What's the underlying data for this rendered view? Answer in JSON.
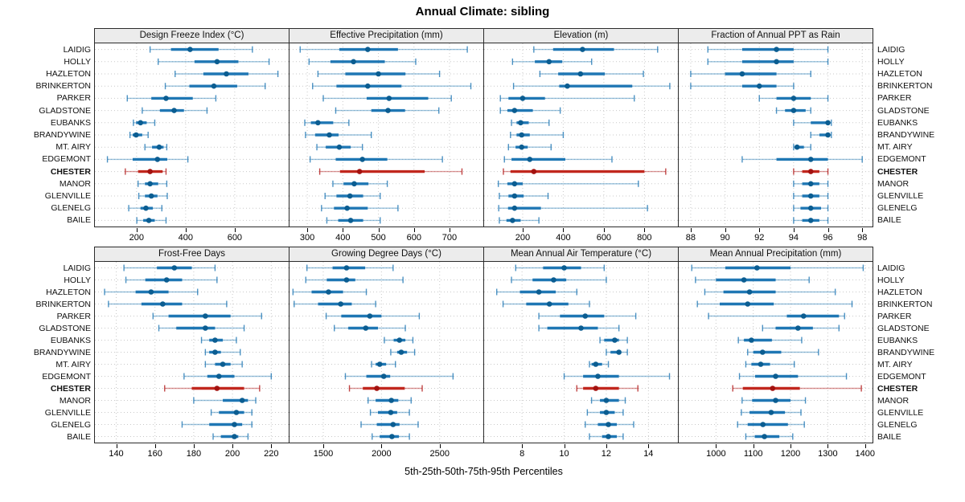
{
  "title": "Annual Climate: sibling",
  "xlabel": "5th-25th-50th-75th-95th Percentiles",
  "stations": [
    "LAIDIG",
    "HOLLY",
    "HAZLETON",
    "BRINKERTON",
    "PARKER",
    "GLADSTONE",
    "EUBANKS",
    "BRANDYWINE",
    "MT. AIRY",
    "EDGEMONT",
    "CHESTER",
    "MANOR",
    "GLENVILLE",
    "GLENELG",
    "BAILE"
  ],
  "highlight_station": "CHESTER",
  "colors": {
    "blue_bar": "#1f77b4",
    "blue_dot": "#0b5d91",
    "blue_whisker": "rgba(31,119,180,0.45)",
    "blue_cap": "rgba(31,119,180,0.8)",
    "red_bar": "#c1271e",
    "red_dot": "#a31210",
    "red_whisker": "rgba(178,24,24,0.45)",
    "red_cap": "rgba(178,24,24,0.8)",
    "grid": "#c9c9c9",
    "strip_bg": "#ececec",
    "border": "#2b2b2b"
  },
  "chart_data": [
    {
      "type": "scatter",
      "title": "Design Freeze Index (°C)",
      "percentiles": [
        "5th",
        "25th",
        "50th",
        "75th",
        "95th"
      ],
      "ticks": [
        200,
        400,
        600
      ],
      "range": [
        30,
        820
      ],
      "legend_position": "none",
      "grid": true,
      "values": [
        [
          255,
          340,
          418,
          534,
          672
        ],
        [
          288,
          436,
          528,
          615,
          740
        ],
        [
          357,
          472,
          566,
          656,
          776
        ],
        [
          317,
          415,
          515,
          610,
          724
        ],
        [
          162,
          260,
          320,
          429,
          523
        ],
        [
          223,
          295,
          353,
          393,
          487
        ],
        [
          187,
          198,
          216,
          241,
          274
        ],
        [
          173,
          184,
          198,
          223,
          247
        ],
        [
          234,
          263,
          292,
          310,
          323
        ],
        [
          81,
          184,
          285,
          325,
          409
        ],
        [
          154,
          206,
          255,
          306,
          320
        ],
        [
          206,
          234,
          255,
          288,
          323
        ],
        [
          209,
          234,
          260,
          285,
          325
        ],
        [
          168,
          216,
          238,
          266,
          303
        ],
        [
          201,
          227,
          250,
          274,
          320
        ]
      ]
    },
    {
      "type": "scatter",
      "title": "Effective Precipitation (mm)",
      "percentiles": [
        "5th",
        "25th",
        "50th",
        "75th",
        "95th"
      ],
      "ticks": [
        300,
        400,
        500,
        600,
        700
      ],
      "range": [
        250,
        795
      ],
      "legend_position": "none",
      "grid": true,
      "values": [
        [
          280,
          390,
          470,
          555,
          750
        ],
        [
          305,
          365,
          430,
          518,
          605
        ],
        [
          330,
          407,
          500,
          576,
          672
        ],
        [
          315,
          382,
          470,
          565,
          760
        ],
        [
          345,
          467,
          530,
          640,
          705
        ],
        [
          380,
          480,
          527,
          575,
          670
        ],
        [
          293,
          310,
          330,
          373,
          417
        ],
        [
          295,
          322,
          362,
          388,
          480
        ],
        [
          327,
          352,
          390,
          422,
          455
        ],
        [
          308,
          380,
          455,
          525,
          680
        ],
        [
          335,
          392,
          447,
          630,
          735
        ],
        [
          372,
          402,
          432,
          472,
          525
        ],
        [
          350,
          382,
          420,
          457,
          505
        ],
        [
          340,
          375,
          412,
          470,
          555
        ],
        [
          355,
          387,
          422,
          457,
          505
        ]
      ]
    },
    {
      "type": "scatter",
      "title": "Elevation (m)",
      "percentiles": [
        "5th",
        "25th",
        "50th",
        "75th",
        "95th"
      ],
      "ticks": [
        200,
        400,
        600,
        800
      ],
      "range": [
        10,
        965
      ],
      "legend_position": "none",
      "grid": true,
      "values": [
        [
          255,
          350,
          495,
          650,
          865
        ],
        [
          150,
          260,
          330,
          395,
          540
        ],
        [
          285,
          375,
          485,
          605,
          795
        ],
        [
          155,
          380,
          420,
          740,
          925
        ],
        [
          90,
          130,
          200,
          310,
          750
        ],
        [
          90,
          125,
          160,
          250,
          385
        ],
        [
          145,
          170,
          190,
          230,
          330
        ],
        [
          140,
          170,
          195,
          235,
          400
        ],
        [
          130,
          165,
          195,
          225,
          340
        ],
        [
          110,
          145,
          235,
          410,
          640
        ],
        [
          105,
          140,
          255,
          800,
          905
        ],
        [
          80,
          125,
          160,
          200,
          770
        ],
        [
          85,
          130,
          160,
          205,
          325
        ],
        [
          82,
          128,
          160,
          290,
          815
        ],
        [
          85,
          120,
          150,
          190,
          280
        ]
      ]
    },
    {
      "type": "scatter",
      "title": "Fraction of Annual PPT as Rain",
      "percentiles": [
        "5th",
        "25th",
        "50th",
        "75th",
        "95th"
      ],
      "ticks": [
        88,
        90,
        92,
        94,
        96,
        98
      ],
      "range": [
        87.3,
        98.6
      ],
      "legend_position": "none",
      "grid": true,
      "values": [
        [
          89,
          91,
          93,
          94,
          96
        ],
        [
          89,
          91,
          93,
          94,
          96
        ],
        [
          88,
          90,
          91,
          93,
          95
        ],
        [
          88,
          91,
          92,
          93,
          94
        ],
        [
          92,
          93,
          94,
          95,
          96
        ],
        [
          93,
          93.5,
          94,
          94.7,
          95
        ],
        [
          94,
          95,
          96,
          96.1,
          96.2
        ],
        [
          95,
          95.5,
          96,
          96.1,
          96.2
        ],
        [
          94,
          94.1,
          94.2,
          94.6,
          95
        ],
        [
          91,
          93,
          95,
          96,
          98
        ],
        [
          94,
          94.5,
          95,
          95.5,
          96
        ],
        [
          94,
          94.5,
          95,
          95.5,
          96
        ],
        [
          94,
          94.5,
          95,
          95.5,
          96
        ],
        [
          94,
          94.4,
          95,
          95.6,
          96
        ],
        [
          94,
          94.5,
          95,
          95.5,
          96
        ]
      ]
    },
    {
      "type": "scatter",
      "title": "Frost-Free Days",
      "percentiles": [
        "5th",
        "25th",
        "50th",
        "75th",
        "95th"
      ],
      "ticks": [
        140,
        160,
        180,
        200,
        220
      ],
      "range": [
        129,
        229
      ],
      "legend_position": "none",
      "grid": true,
      "values": [
        [
          144,
          161,
          170,
          179,
          191
        ],
        [
          145,
          155,
          166,
          174,
          192
        ],
        [
          134,
          150,
          158,
          167,
          182
        ],
        [
          136,
          153,
          164,
          174,
          197
        ],
        [
          159,
          167,
          186,
          199,
          215
        ],
        [
          162,
          171,
          186,
          191,
          206
        ],
        [
          184,
          188,
          191,
          195,
          202
        ],
        [
          186,
          188,
          191,
          194,
          204
        ],
        [
          186,
          191,
          195,
          199,
          205
        ],
        [
          175,
          187,
          193,
          201,
          220
        ],
        [
          165,
          179,
          192,
          206,
          214
        ],
        [
          180,
          195,
          205,
          208,
          212
        ],
        [
          189,
          193,
          202,
          206,
          210
        ],
        [
          174,
          188,
          201,
          205,
          210
        ],
        [
          190,
          194,
          201,
          203,
          208
        ]
      ]
    },
    {
      "type": "scatter",
      "title": "Growing Degree Days (°C)",
      "percentiles": [
        "5th",
        "25th",
        "50th",
        "75th",
        "95th"
      ],
      "ticks": [
        1500,
        2000,
        2500
      ],
      "range": [
        1210,
        2875
      ],
      "legend_position": "none",
      "grid": true,
      "values": [
        [
          1360,
          1580,
          1700,
          1860,
          2100
        ],
        [
          1350,
          1530,
          1700,
          1775,
          2185
        ],
        [
          1240,
          1400,
          1545,
          1670,
          1870
        ],
        [
          1250,
          1455,
          1650,
          1745,
          1950
        ],
        [
          1525,
          1655,
          1900,
          2000,
          2325
        ],
        [
          1595,
          1715,
          1865,
          1970,
          2205
        ],
        [
          2025,
          2105,
          2155,
          2205,
          2270
        ],
        [
          2080,
          2135,
          2170,
          2220,
          2285
        ],
        [
          1915,
          1950,
          1985,
          2040,
          2120
        ],
        [
          1690,
          1870,
          2020,
          2075,
          2615
        ],
        [
          1725,
          1840,
          1960,
          2200,
          2350
        ],
        [
          1885,
          1950,
          2085,
          2145,
          2255
        ],
        [
          1905,
          1970,
          2080,
          2135,
          2240
        ],
        [
          1825,
          1960,
          2100,
          2155,
          2315
        ],
        [
          1920,
          1985,
          2090,
          2150,
          2240
        ]
      ]
    },
    {
      "type": "scatter",
      "title": "Mean Annual Air Temperature (°C)",
      "percentiles": [
        "5th",
        "25th",
        "50th",
        "75th",
        "95th"
      ],
      "ticks": [
        8,
        10,
        12,
        14
      ],
      "range": [
        6.2,
        15.4
      ],
      "legend_position": "none",
      "grid": true,
      "values": [
        [
          7.7,
          9.0,
          10.0,
          10.8,
          11.9
        ],
        [
          7.5,
          8.5,
          9.5,
          10.1,
          12.0
        ],
        [
          6.8,
          7.9,
          8.8,
          9.6,
          10.6
        ],
        [
          7.1,
          8.2,
          9.3,
          10.2,
          11.2
        ],
        [
          8.8,
          9.8,
          11.0,
          11.9,
          13.4
        ],
        [
          8.8,
          9.2,
          10.8,
          11.6,
          12.6
        ],
        [
          11.7,
          11.9,
          12.4,
          12.6,
          13.0
        ],
        [
          12.0,
          12.2,
          12.6,
          12.7,
          13.0
        ],
        [
          11.2,
          11.3,
          11.5,
          11.8,
          12.1
        ],
        [
          10.0,
          10.9,
          11.6,
          12.6,
          15.0
        ],
        [
          10.6,
          10.9,
          11.5,
          12.6,
          13.5
        ],
        [
          11.3,
          11.7,
          12.0,
          12.6,
          12.9
        ],
        [
          11.1,
          11.7,
          12.0,
          12.4,
          12.8
        ],
        [
          11.0,
          11.6,
          12.1,
          12.5,
          13.3
        ],
        [
          11.2,
          11.8,
          12.1,
          12.5,
          12.8
        ]
      ]
    },
    {
      "type": "scatter",
      "title": "Mean Annual Precipitation (mm)",
      "percentiles": [
        "5th",
        "25th",
        "50th",
        "75th",
        "95th"
      ],
      "ticks": [
        1000,
        1100,
        1200,
        1300,
        1400
      ],
      "range": [
        900,
        1420
      ],
      "legend_position": "none",
      "grid": true,
      "values": [
        [
          935,
          1025,
          1110,
          1200,
          1395
        ],
        [
          945,
          1000,
          1075,
          1160,
          1250
        ],
        [
          970,
          1020,
          1090,
          1160,
          1320
        ],
        [
          950,
          1010,
          1085,
          1155,
          1365
        ],
        [
          980,
          1190,
          1235,
          1330,
          1345
        ],
        [
          1125,
          1160,
          1220,
          1260,
          1330
        ],
        [
          1060,
          1075,
          1095,
          1150,
          1230
        ],
        [
          1085,
          1100,
          1125,
          1175,
          1275
        ],
        [
          1080,
          1095,
          1120,
          1145,
          1210
        ],
        [
          1063,
          1105,
          1160,
          1220,
          1350
        ],
        [
          1045,
          1072,
          1152,
          1225,
          1390
        ],
        [
          1070,
          1097,
          1160,
          1200,
          1240
        ],
        [
          1068,
          1090,
          1148,
          1185,
          1228
        ],
        [
          1058,
          1085,
          1126,
          1193,
          1237
        ],
        [
          1080,
          1104,
          1130,
          1170,
          1206
        ]
      ]
    }
  ]
}
